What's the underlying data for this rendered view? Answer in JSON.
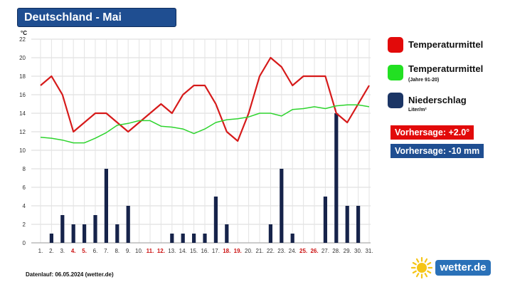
{
  "title": "Deutschland - Mai",
  "legend": [
    {
      "label": "Temperaturmittel",
      "sub": "",
      "color": "#e20a0a"
    },
    {
      "label": "Temperaturmittel",
      "sub": "(Jahre 91-20)",
      "color": "#22e022"
    },
    {
      "label": "Niederschlag",
      "sub": "Liter/m²",
      "color": "#1b3565"
    }
  ],
  "forecasts": [
    {
      "text": "Vorhersage: +2.0°",
      "color": "#e20a0a"
    },
    {
      "text": "Vorhersage: -10 mm",
      "color": "#1f4e91"
    }
  ],
  "footer": "Datenlauf: 06.05.2024 (wetter.de)",
  "logo": {
    "text": "wetter.de",
    "color": "#2a71b8",
    "sun_color": "#f5c518"
  },
  "chart_data": {
    "type": "line",
    "ylabel": "°C",
    "ylim": [
      0,
      22
    ],
    "yticks": [
      0,
      2,
      4,
      6,
      8,
      10,
      12,
      14,
      16,
      18,
      20,
      22
    ],
    "grid": true,
    "categories": [
      "1.",
      "2.",
      "3.",
      "4.",
      "5.",
      "6.",
      "7.",
      "8.",
      "9.",
      "10.",
      "11.",
      "12.",
      "13.",
      "14.",
      "15.",
      "16.",
      "17.",
      "18.",
      "19.",
      "20.",
      "21.",
      "22.",
      "23.",
      "24.",
      "25.",
      "26.",
      "27.",
      "28.",
      "29.",
      "30.",
      "31."
    ],
    "weekend_days": [
      4,
      5,
      11,
      12,
      18,
      19,
      25,
      26
    ],
    "weekend_color": "#cc1111",
    "series": [
      {
        "name": "Temperaturmittel",
        "kind": "line",
        "color": "#d61a1a",
        "values": [
          17,
          18,
          16,
          12,
          13,
          14,
          14,
          13,
          12,
          13,
          14,
          15,
          14,
          16,
          17,
          17,
          15,
          12,
          11,
          14,
          18,
          20,
          19,
          17,
          18,
          18,
          18,
          14,
          13,
          15,
          17
        ]
      },
      {
        "name": "Temperaturmittel (Jahre 91-20)",
        "kind": "line",
        "color": "#2ed42e",
        "values": [
          11.4,
          11.3,
          11.1,
          10.8,
          10.8,
          11.3,
          11.9,
          12.7,
          12.9,
          13.2,
          13.2,
          12.6,
          12.5,
          12.3,
          11.8,
          12.3,
          13.0,
          13.3,
          13.4,
          13.6,
          14.0,
          14.0,
          13.7,
          14.4,
          14.5,
          14.7,
          14.5,
          14.8,
          14.9,
          14.9,
          14.7
        ]
      },
      {
        "name": "Niederschlag",
        "kind": "bar",
        "color": "#16234a",
        "values": [
          0,
          1,
          3,
          2,
          2,
          3,
          8,
          2,
          4,
          0,
          0,
          0,
          1,
          1,
          1,
          1,
          5,
          2,
          0,
          0,
          0,
          2,
          8,
          1,
          0,
          0,
          5,
          14,
          4,
          4,
          0
        ]
      }
    ]
  }
}
